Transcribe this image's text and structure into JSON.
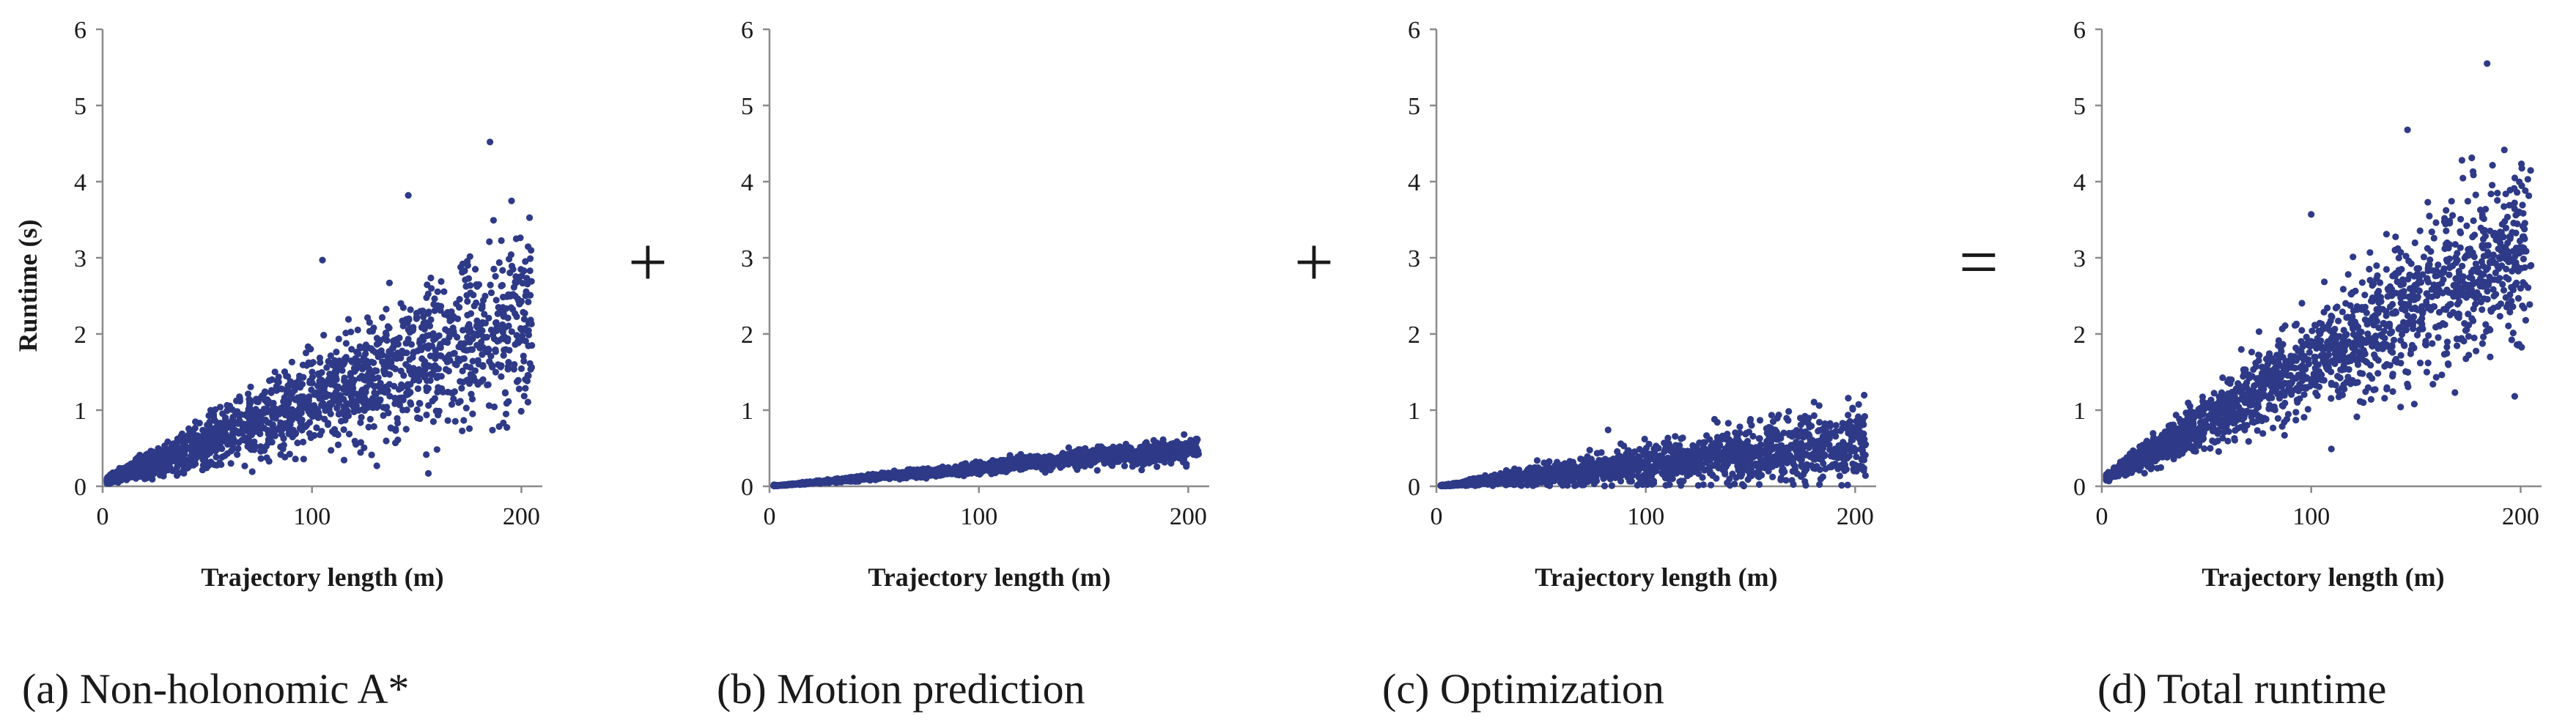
{
  "figure": {
    "operators": [
      "+",
      "+",
      "="
    ],
    "point_color": "#2e3a87",
    "axis_color": "#8a8a8a"
  },
  "chart_data": [
    {
      "type": "scatter",
      "caption": "(a) Non-holonomic A*",
      "xlabel": "Trajectory length (m)",
      "ylabel": "Runtime (s)",
      "xlim": [
        0,
        210
      ],
      "ylim": [
        0,
        6
      ],
      "xticks": [
        0,
        100,
        200
      ],
      "yticks": [
        0,
        1,
        2,
        3,
        4,
        5,
        6
      ],
      "grid": false,
      "trend": {
        "intercept": 0.06,
        "slope": 0.0105,
        "scatter_rel": 0.28,
        "x_range": [
          2,
          205
        ]
      },
      "n_points": 1800,
      "points": [
        [
          185,
          4.52
        ],
        [
          146,
          3.82
        ],
        [
          105,
          2.97
        ],
        [
          172,
          2.92
        ],
        [
          178,
          2.85
        ],
        [
          200,
          2.43
        ],
        [
          205,
          1.85
        ],
        [
          158,
          0.85
        ],
        [
          170,
          1.1
        ]
      ]
    },
    {
      "type": "scatter",
      "caption": "(b) Motion prediction",
      "xlabel": "Trajectory length (m)",
      "ylabel": "",
      "xlim": [
        0,
        210
      ],
      "ylim": [
        0,
        6
      ],
      "xticks": [
        0,
        100,
        200
      ],
      "yticks": [
        0,
        1,
        2,
        3,
        4,
        5,
        6
      ],
      "grid": false,
      "trend": {
        "intercept": 0.0,
        "slope": 0.0024,
        "scatter_rel": 0.15,
        "x_range": [
          2,
          205
        ]
      },
      "n_points": 1800,
      "points": [
        [
          198,
          0.68
        ],
        [
          185,
          0.57
        ],
        [
          204,
          0.5
        ],
        [
          120,
          0.42
        ]
      ]
    },
    {
      "type": "scatter",
      "caption": "(c) Optimization",
      "xlabel": "Trajectory length (m)",
      "ylabel": "",
      "xlim": [
        0,
        210
      ],
      "ylim": [
        0,
        6
      ],
      "xticks": [
        0,
        100,
        200
      ],
      "yticks": [
        0,
        1,
        2,
        3,
        4,
        5,
        6
      ],
      "grid": false,
      "trend": {
        "intercept": 0.0,
        "slope": 0.0028,
        "scatter_rel": 0.45,
        "x_range": [
          2,
          205
        ]
      },
      "n_points": 1800,
      "points": [
        [
          82,
          0.74
        ],
        [
          176,
          0.92
        ],
        [
          185,
          0.75
        ],
        [
          198,
          0.72
        ],
        [
          205,
          0.55
        ],
        [
          150,
          0.88
        ]
      ]
    },
    {
      "type": "scatter",
      "caption": "(d) Total runtime",
      "xlabel": "Trajectory length (m)",
      "ylabel": "",
      "xlim": [
        0,
        210
      ],
      "ylim": [
        0,
        6
      ],
      "xticks": [
        0,
        100,
        200
      ],
      "yticks": [
        0,
        1,
        2,
        3,
        4,
        5,
        6
      ],
      "grid": false,
      "trend": {
        "intercept": 0.08,
        "slope": 0.0155,
        "scatter_rel": 0.2,
        "x_range": [
          2,
          205
        ]
      },
      "n_points": 1800,
      "points": [
        [
          184,
          5.55
        ],
        [
          146,
          4.68
        ],
        [
          172,
          4.28
        ],
        [
          100,
          3.57
        ],
        [
          178,
          3.3
        ],
        [
          195,
          3.25
        ],
        [
          205,
          2.9
        ],
        [
          200,
          2.6
        ]
      ]
    }
  ]
}
